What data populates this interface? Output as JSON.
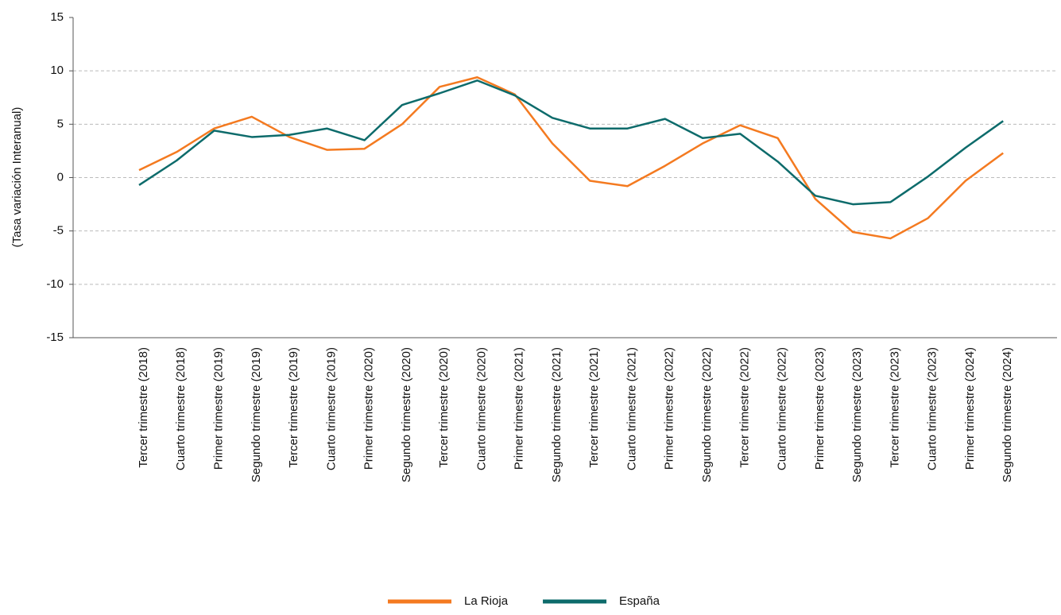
{
  "chart_data": {
    "type": "line",
    "y_label": "(Tasa variación Interanual)",
    "categories": [
      "Tercer trimestre (2018)",
      "Cuarto trimestre (2018)",
      "Primer trimestre (2019)",
      "Segundo trimestre (2019)",
      "Tercer trimestre (2019)",
      "Cuarto trimestre (2019)",
      "Primer trimestre (2020)",
      "Segundo trimestre (2020)",
      "Tercer trimestre (2020)",
      "Cuarto trimestre (2020)",
      "Primer trimestre (2021)",
      "Segundo trimestre (2021)",
      "Tercer trimestre (2021)",
      "Cuarto trimestre (2021)",
      "Primer trimestre (2022)",
      "Segundo trimestre (2022)",
      "Tercer trimestre (2022)",
      "Cuarto trimestre (2022)",
      "Primer trimestre (2023)",
      "Segundo trimestre (2023)",
      "Tercer trimestre (2023)",
      "Cuarto trimestre (2023)",
      "Primer trimestre (2024)",
      "Segundo trimestre (2024)"
    ],
    "series": [
      {
        "name": "La Rioja",
        "color": "#f47a20",
        "values": [
          0.7,
          2.4,
          4.6,
          5.7,
          3.8,
          2.6,
          2.7,
          5.0,
          8.5,
          9.4,
          7.8,
          3.2,
          -0.3,
          -0.8,
          1.1,
          3.2,
          4.9,
          3.7,
          -2.0,
          -5.1,
          -5.7,
          -3.8,
          -0.3,
          2.3
        ]
      },
      {
        "name": "España",
        "color": "#0d6b6b",
        "values": [
          -0.7,
          1.6,
          4.4,
          3.8,
          4.0,
          4.6,
          3.5,
          6.8,
          7.9,
          9.1,
          7.7,
          5.6,
          4.6,
          4.6,
          5.5,
          3.7,
          4.1,
          1.5,
          -1.7,
          -2.5,
          -2.3,
          0.1,
          2.8,
          5.3
        ]
      }
    ],
    "ylim": [
      -15,
      15
    ],
    "yticks": [
      -15,
      -10,
      -5,
      0,
      5,
      10,
      15
    ],
    "grid": true,
    "legend": "bottom"
  }
}
